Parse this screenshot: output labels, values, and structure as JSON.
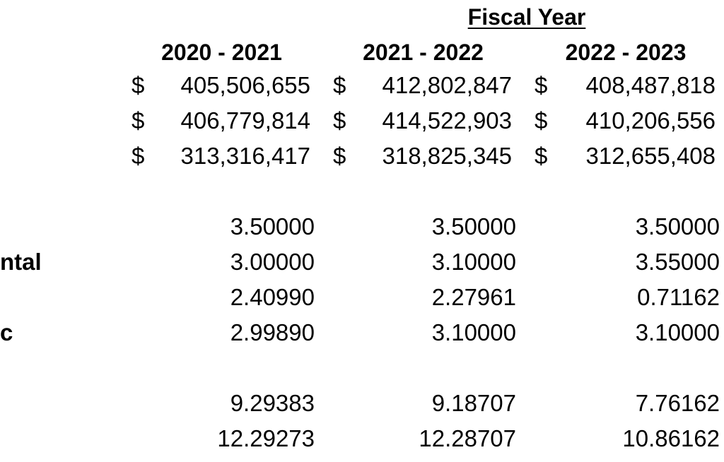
{
  "table": {
    "title": "Fiscal Year",
    "currency_symbol": "$",
    "column_headers": [
      "2020 - 2021",
      "2021 - 2022",
      "2022 - 2023"
    ],
    "currency_rows": [
      {
        "values": [
          "405,506,655",
          "412,802,847",
          "408,487,818"
        ]
      },
      {
        "values": [
          "406,779,814",
          "414,522,903",
          "410,206,556"
        ]
      },
      {
        "values": [
          "313,316,417",
          "318,825,345",
          "312,655,408"
        ]
      }
    ],
    "rate_rows": [
      {
        "label": "",
        "values": [
          "3.50000",
          "3.50000",
          "3.50000"
        ]
      },
      {
        "label": "ntal",
        "values": [
          "3.00000",
          "3.10000",
          "3.55000"
        ]
      },
      {
        "label": "",
        "values": [
          "2.40990",
          "2.27961",
          "0.71162"
        ]
      },
      {
        "label": "c",
        "values": [
          "2.99890",
          "3.10000",
          "3.10000"
        ]
      }
    ],
    "total_rows": [
      {
        "values": [
          "9.29383",
          "9.18707",
          "7.76162"
        ]
      },
      {
        "values": [
          "12.29273",
          "12.28707",
          "10.86162"
        ]
      }
    ]
  }
}
